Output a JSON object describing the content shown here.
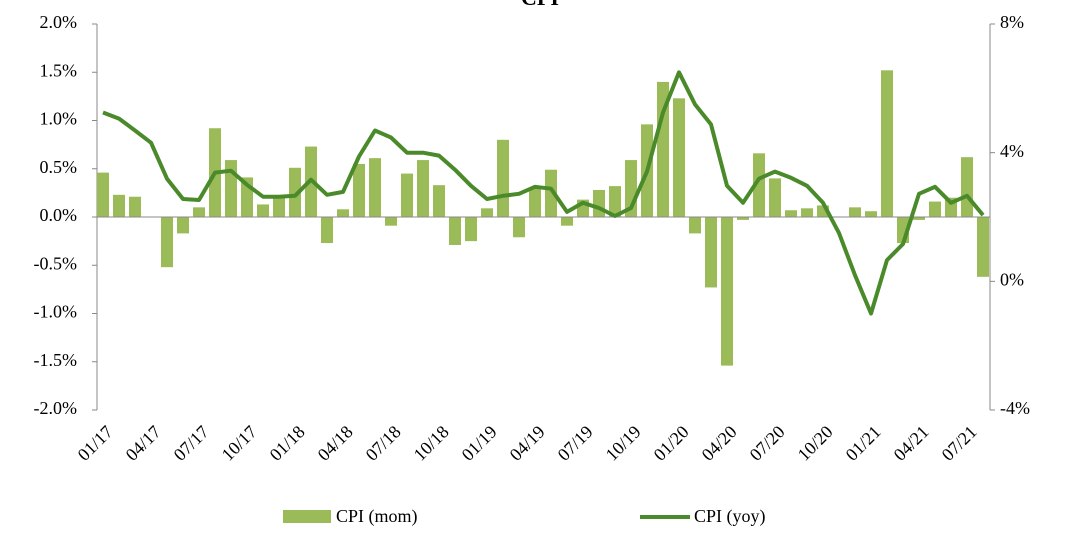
{
  "chart_data": {
    "type": "bar_line",
    "title": "CPI",
    "categories": [
      "01/17",
      null,
      null,
      "04/17",
      null,
      null,
      "07/17",
      null,
      null,
      "10/17",
      null,
      null,
      "01/18",
      null,
      null,
      "04/18",
      null,
      null,
      "07/18",
      null,
      null,
      "10/18",
      null,
      null,
      "01/19",
      null,
      null,
      "04/19",
      null,
      null,
      "07/19",
      null,
      null,
      "10/19",
      null,
      null,
      "01/20",
      null,
      null,
      "04/20",
      null,
      null,
      "07/20",
      null,
      null,
      "10/20",
      null,
      null,
      "01/21",
      null,
      null,
      "04/21",
      null,
      null,
      "07/21",
      null
    ],
    "series": [
      {
        "name": "CPI (mom)",
        "type": "bar",
        "color": "#9bbb59",
        "values": [
          0.46,
          0.23,
          0.21,
          0,
          -0.52,
          -0.17,
          0.1,
          0.92,
          0.59,
          0.41,
          0.13,
          0.2,
          0.51,
          0.73,
          -0.27,
          0.08,
          0.55,
          0.61,
          -0.09,
          0.45,
          0.59,
          0.33,
          -0.29,
          -0.25,
          0.09,
          0.8,
          -0.21,
          0.3,
          0.49,
          -0.09,
          0.18,
          0.28,
          0.32,
          0.59,
          0.96,
          1.4,
          1.23,
          -0.17,
          -0.73,
          -1.54,
          -0.03,
          0.66,
          0.4,
          0.07,
          0.09,
          0.12,
          0,
          0.1,
          0.06,
          1.52,
          -0.27,
          -0.03,
          0.16,
          0.2,
          0.62,
          -0.62
        ]
      },
      {
        "name": "CPI (yoy)",
        "type": "line",
        "axis": "y2",
        "color": "#4a8a2a",
        "values": [
          5.25,
          5.06,
          4.69,
          4.31,
          3.19,
          2.56,
          2.53,
          3.38,
          3.44,
          3.0,
          2.63,
          2.63,
          2.66,
          3.16,
          2.69,
          2.78,
          3.88,
          4.69,
          4.47,
          4.0,
          4.0,
          3.91,
          3.47,
          2.97,
          2.56,
          2.66,
          2.72,
          2.94,
          2.88,
          2.16,
          2.44,
          2.28,
          2.03,
          2.28,
          3.41,
          5.25,
          6.5,
          5.5,
          4.88,
          2.97,
          2.44,
          3.19,
          3.41,
          3.22,
          2.97,
          2.44,
          1.5,
          0.19,
          -1.0,
          0.66,
          1.16,
          2.72,
          2.94,
          2.44,
          2.66,
          2.06
        ]
      }
    ],
    "ylim": [
      -2,
      2
    ],
    "yticks": [
      {
        "value": -2,
        "label": "-2.0%"
      },
      {
        "value": -1.5,
        "label": "-1.5%"
      },
      {
        "value": -1,
        "label": "-1.0%"
      },
      {
        "value": -0.5,
        "label": "-0.5%"
      },
      {
        "value": 0,
        "label": "0.0%"
      },
      {
        "value": 0.5,
        "label": "0.5%"
      },
      {
        "value": 1,
        "label": "1.0%"
      },
      {
        "value": 1.5,
        "label": "1.5%"
      },
      {
        "value": 2,
        "label": "2.0%"
      }
    ],
    "y2lim": [
      -4,
      8
    ],
    "y2ticks": [
      {
        "value": -4,
        "label": "-4%"
      },
      {
        "value": 0,
        "label": "0%"
      },
      {
        "value": 4,
        "label": "4%"
      },
      {
        "value": 8,
        "label": "8%"
      }
    ],
    "legend": "bottom"
  }
}
